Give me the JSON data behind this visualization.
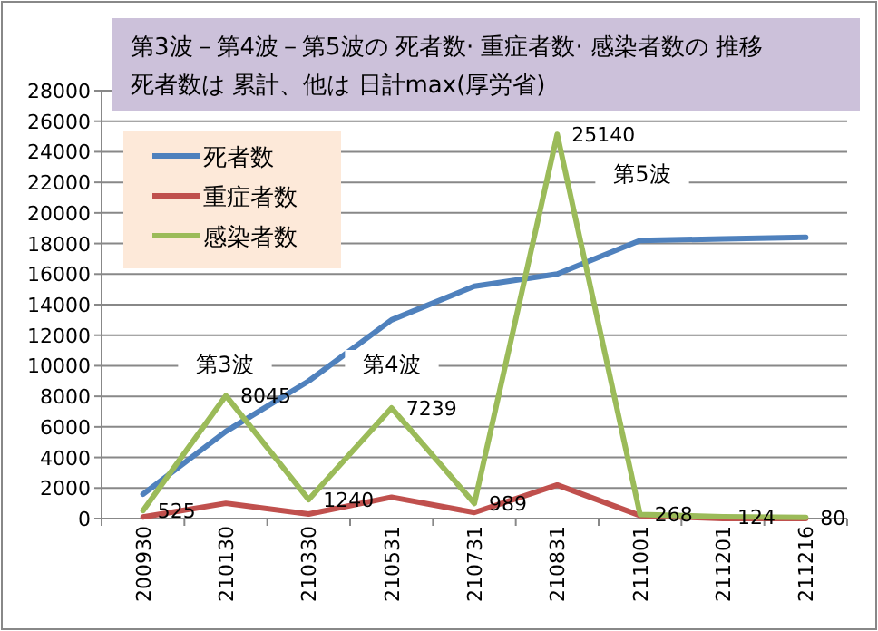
{
  "chart_data": {
    "type": "line",
    "title": "第3波－第4波－第5波の 死者数· 重症者数· 感染者数の 推移",
    "subtitle": "死者数は 累計、他は 日計max(厚労省)",
    "categories": [
      "200930",
      "210130",
      "210330",
      "210531",
      "210731",
      "210831",
      "211001",
      "211201",
      "211216"
    ],
    "series": [
      {
        "name": "死者数",
        "color": "#4f81bd",
        "values": [
          1600,
          5700,
          9000,
          13000,
          15200,
          16000,
          18200,
          18300,
          18400
        ]
      },
      {
        "name": "重症者数",
        "color": "#c0504d",
        "values": [
          100,
          1000,
          300,
          1400,
          400,
          2200,
          200,
          0,
          0
        ]
      },
      {
        "name": "感染者数",
        "color": "#9bbb59",
        "values": [
          525,
          8045,
          1240,
          7239,
          989,
          25140,
          268,
          124,
          80
        ],
        "value_labels": [
          "525",
          "8045",
          "1240",
          "7239",
          "989",
          "25140",
          "268",
          "124",
          "80"
        ]
      }
    ],
    "ylim": [
      0,
      28000
    ],
    "yticks": [
      0,
      2000,
      4000,
      6000,
      8000,
      10000,
      12000,
      14000,
      16000,
      18000,
      20000,
      22000,
      24000,
      26000,
      28000
    ],
    "grid": "y",
    "legend": "top left",
    "marker": "none",
    "line_style": "solid",
    "annotations": [
      "第3波",
      "第4波",
      "第5波"
    ]
  }
}
